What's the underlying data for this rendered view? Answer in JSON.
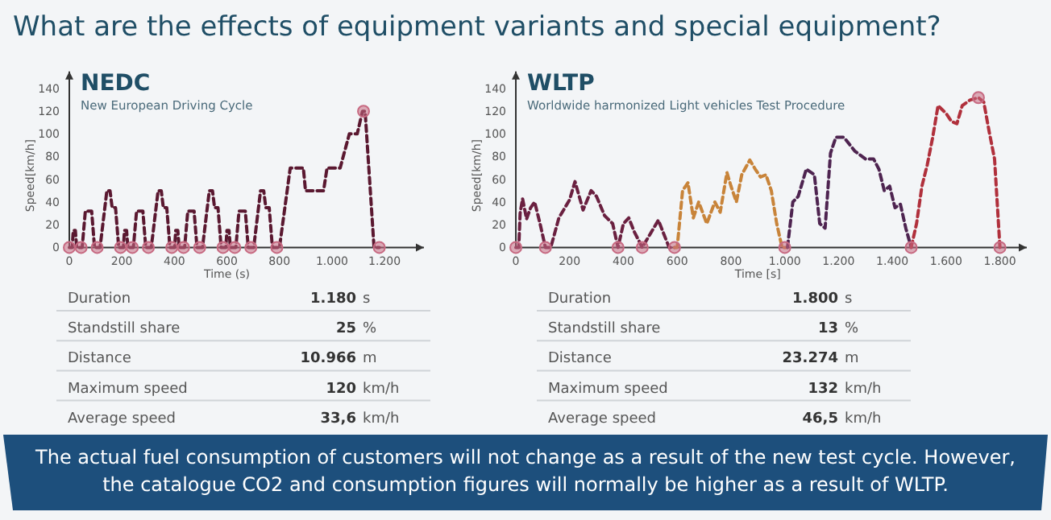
{
  "chart_data": [
    {
      "type": "other",
      "title": "What are the effects of equipment variants and special equipment?",
      "annotations": [
        "The actual fuel consumption of customers will not change as a result of the new test cycle. However, the catalogue CO2 and consumption figures will normally be higher as a result of WLTP."
      ]
    },
    {
      "type": "line",
      "title": "NEDC",
      "subtitle": "New European Driving Cycle",
      "xlabel": "Time (s)",
      "ylabel": "Speed[km/h]",
      "xlim": [
        0,
        1350
      ],
      "ylim": [
        0,
        155
      ],
      "line_style": "dashed",
      "xticks": [
        0,
        200,
        400,
        600,
        800,
        {
          "value": 1000,
          "label": "1.000"
        },
        {
          "value": 1200,
          "label": "1.200"
        }
      ],
      "yticks": [
        0,
        20,
        40,
        60,
        80,
        100,
        120,
        140
      ],
      "series": [
        {
          "color": "#5a1830",
          "x": [
            0,
            11,
            15,
            23,
            28,
            49,
            61,
            85,
            96,
            117,
            143,
            155,
            163,
            176,
            188,
            195,
            206,
            210,
            218,
            223,
            244,
            256,
            280,
            291,
            312,
            338,
            350,
            358,
            371,
            383,
            390,
            401,
            405,
            413,
            418,
            439,
            451,
            475,
            486,
            507,
            533,
            545,
            553,
            566,
            578,
            585,
            596,
            600,
            608,
            613,
            634,
            646,
            670,
            681,
            702,
            728,
            740,
            748,
            761,
            773,
            780,
            800,
            841,
            891,
            899,
            968,
            981,
            1031,
            1066,
            1096,
            1116,
            1126,
            1160,
            1180
          ],
          "values": [
            0,
            0,
            15,
            15,
            0,
            0,
            32,
            32,
            0,
            0,
            50,
            50,
            35,
            35,
            0,
            0,
            0,
            15,
            15,
            0,
            0,
            32,
            32,
            0,
            0,
            50,
            50,
            35,
            35,
            0,
            0,
            0,
            15,
            15,
            0,
            0,
            32,
            32,
            0,
            0,
            50,
            50,
            35,
            35,
            0,
            0,
            0,
            15,
            15,
            0,
            0,
            32,
            32,
            0,
            0,
            50,
            50,
            35,
            35,
            0,
            0,
            0,
            70,
            70,
            50,
            50,
            70,
            70,
            100,
            100,
            120,
            120,
            0,
            0
          ]
        },
        {
          "type": "scatter",
          "marker": "circle",
          "color": "#c76a82",
          "x": [
            0,
            45,
            106,
            195,
            240,
            301,
            390,
            435,
            496,
            585,
            630,
            691,
            790,
            1120,
            1180
          ],
          "values": [
            0,
            0,
            0,
            0,
            0,
            0,
            0,
            0,
            0,
            0,
            0,
            0,
            0,
            120,
            0
          ]
        }
      ],
      "annotations": [
        "Duration",
        "1.180 s",
        "Standstill share",
        "25 %",
        "Distance",
        "10.966 m",
        "Maximum speed",
        "120 km/h",
        "Average speed",
        "33,6 km/h"
      ]
    },
    {
      "type": "line",
      "title": "WLTP",
      "subtitle": "Worldwide harmonized Light vehicles Test Procedure",
      "xlabel": "Time [s]",
      "ylabel": "Speed[km/h]",
      "xlim": [
        0,
        1900
      ],
      "ylim": [
        0,
        155
      ],
      "line_style": "dashed",
      "xticks": [
        0,
        200,
        400,
        600,
        800,
        {
          "value": 1000,
          "label": "1.000"
        },
        {
          "value": 1200,
          "label": "1.200"
        },
        {
          "value": 1400,
          "label": "1.400"
        },
        {
          "value": 1600,
          "label": "1.600"
        },
        {
          "value": 1800,
          "label": "1.800"
        }
      ],
      "yticks": [
        0,
        20,
        40,
        60,
        80,
        100,
        120,
        140
      ],
      "series": [
        {
          "color": "#6a2040",
          "x": [
            0,
            11,
            16,
            25,
            40,
            55,
            70,
            90,
            110,
            130,
            160,
            200,
            220,
            250,
            280,
            300,
            330,
            360,
            380,
            400,
            420,
            440,
            470,
            500,
            530,
            550,
            570,
            590
          ],
          "values": [
            0,
            0,
            30,
            43,
            25,
            35,
            40,
            21,
            0,
            0,
            26,
            42,
            58,
            33,
            50,
            45,
            28,
            21,
            0,
            21,
            26,
            14,
            0,
            12,
            24,
            12,
            0,
            0
          ]
        },
        {
          "color": "#c8843a",
          "x": [
            590,
            600,
            620,
            640,
            660,
            680,
            710,
            740,
            760,
            785,
            800,
            820,
            840,
            870,
            890,
            910,
            930,
            950,
            970,
            990,
            1010
          ],
          "values": [
            0,
            0,
            50,
            57,
            26,
            40,
            21,
            40,
            31,
            66,
            54,
            40,
            64,
            77,
            69,
            62,
            64,
            50,
            21,
            0,
            0
          ]
        },
        {
          "color": "#4e2450",
          "x": [
            1010,
            1030,
            1050,
            1080,
            1110,
            1130,
            1150,
            1170,
            1190,
            1220,
            1260,
            1300,
            1330,
            1350,
            1370,
            1390,
            1410,
            1430,
            1450,
            1470
          ],
          "values": [
            0,
            40,
            45,
            69,
            64,
            21,
            17,
            83,
            97,
            97,
            85,
            78,
            78,
            69,
            50,
            54,
            35,
            38,
            17,
            0
          ]
        },
        {
          "color": "#b0303c",
          "x": [
            1470,
            1490,
            1510,
            1530,
            1550,
            1570,
            1600,
            1620,
            1640,
            1660,
            1690,
            1720,
            1740,
            1760,
            1780,
            1800
          ],
          "values": [
            0,
            21,
            54,
            73,
            97,
            125,
            118,
            111,
            109,
            125,
            130,
            132,
            128,
            102,
            78,
            0
          ]
        },
        {
          "type": "scatter",
          "marker": "circle",
          "color": "#c76a82",
          "x": [
            0,
            110,
            380,
            470,
            590,
            1000,
            1470,
            1720,
            1800
          ],
          "values": [
            0,
            0,
            0,
            0,
            0,
            0,
            0,
            132,
            0
          ]
        }
      ],
      "annotations": [
        "Duration",
        "1.800 s",
        "Standstill share",
        "13 %",
        "Distance",
        "23.274 m",
        "Maximum speed",
        "132 km/h",
        "Average speed",
        "46,5 km/h"
      ]
    }
  ]
}
